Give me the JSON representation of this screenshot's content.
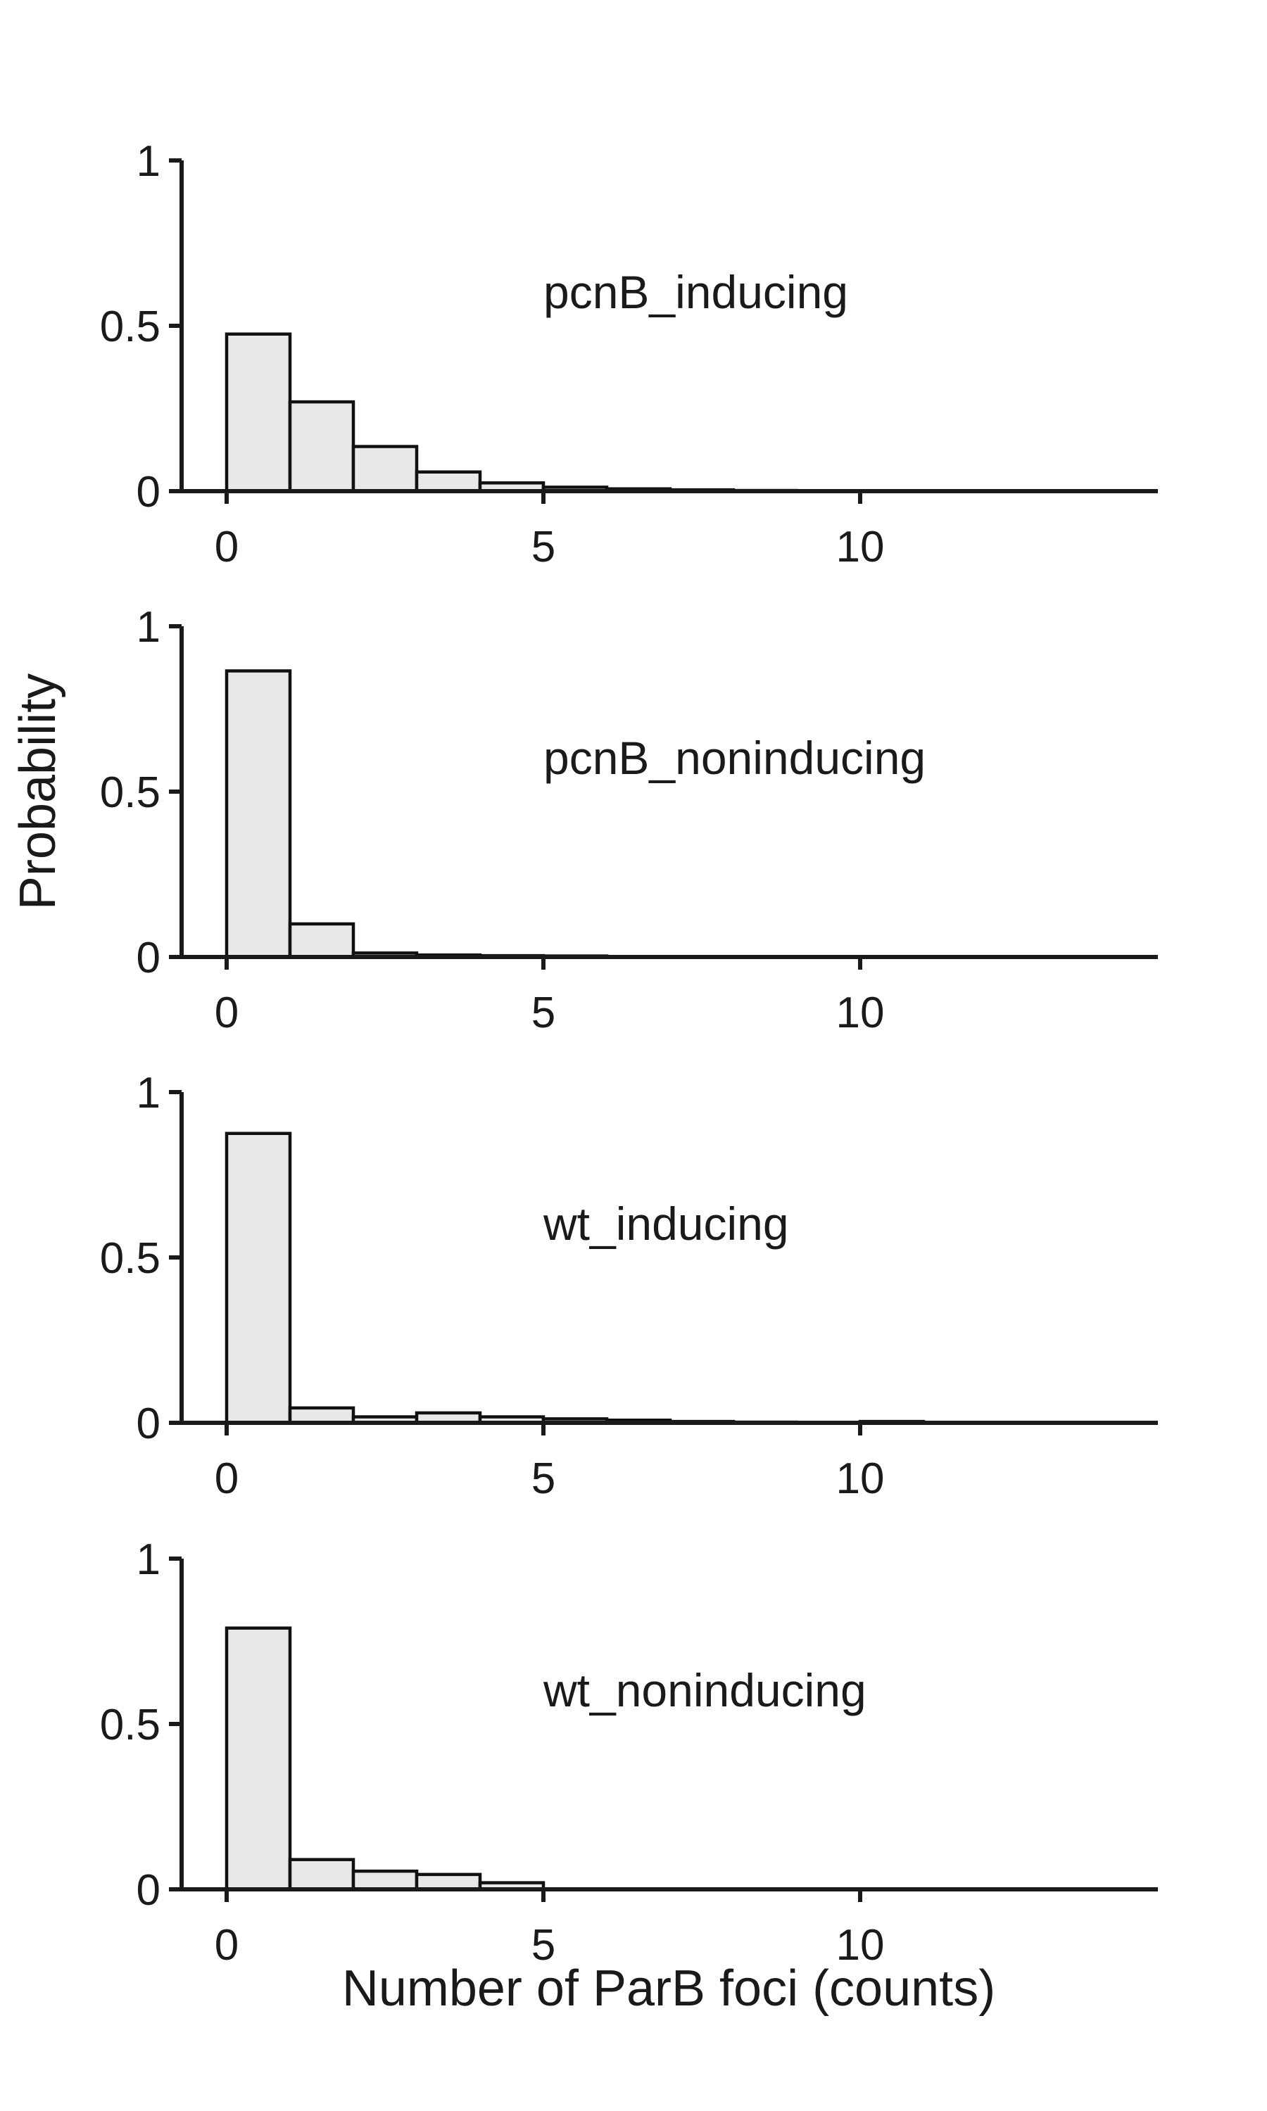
{
  "chart_data": {
    "type": "bar",
    "histogram": true,
    "xlabel": "Number of ParB foci (counts)",
    "ylabel": "Probability",
    "xlim": [
      -0.8,
      14.5
    ],
    "ylim": [
      0,
      1
    ],
    "xticks": [
      0,
      5,
      10
    ],
    "yticks": [
      0,
      0.5,
      1
    ],
    "xtick_labels": [
      "0",
      "5",
      "10"
    ],
    "ytick_labels": [
      "0",
      "0.5",
      "1"
    ],
    "bin_edges": [
      0,
      1,
      2,
      3,
      4,
      5,
      6,
      7,
      8,
      9,
      10,
      11,
      12,
      13,
      14
    ],
    "grid": false,
    "panels": [
      {
        "label": "pcnB_inducing",
        "values": [
          0.475,
          0.27,
          0.135,
          0.058,
          0.025,
          0.012,
          0.007,
          0.004,
          0.002,
          0.001,
          0.0005,
          0.0003,
          0.0002,
          0.0001
        ]
      },
      {
        "label": "pcnB_noninducing",
        "values": [
          0.865,
          0.1,
          0.012,
          0.006,
          0.004,
          0.003,
          0.0,
          0.0,
          0.0,
          0.0,
          0.0,
          0.0,
          0.0,
          0.0
        ]
      },
      {
        "label": "wt_inducing",
        "values": [
          0.875,
          0.045,
          0.018,
          0.03,
          0.018,
          0.012,
          0.008,
          0.004,
          0.002,
          0.001,
          0.004,
          0.0,
          0.0,
          0.0
        ]
      },
      {
        "label": "wt_noninducing",
        "values": [
          0.79,
          0.09,
          0.055,
          0.045,
          0.02,
          0.0,
          0.0,
          0.0,
          0.0,
          0.0,
          0.0,
          0.0,
          0.0,
          0.0
        ]
      }
    ]
  }
}
